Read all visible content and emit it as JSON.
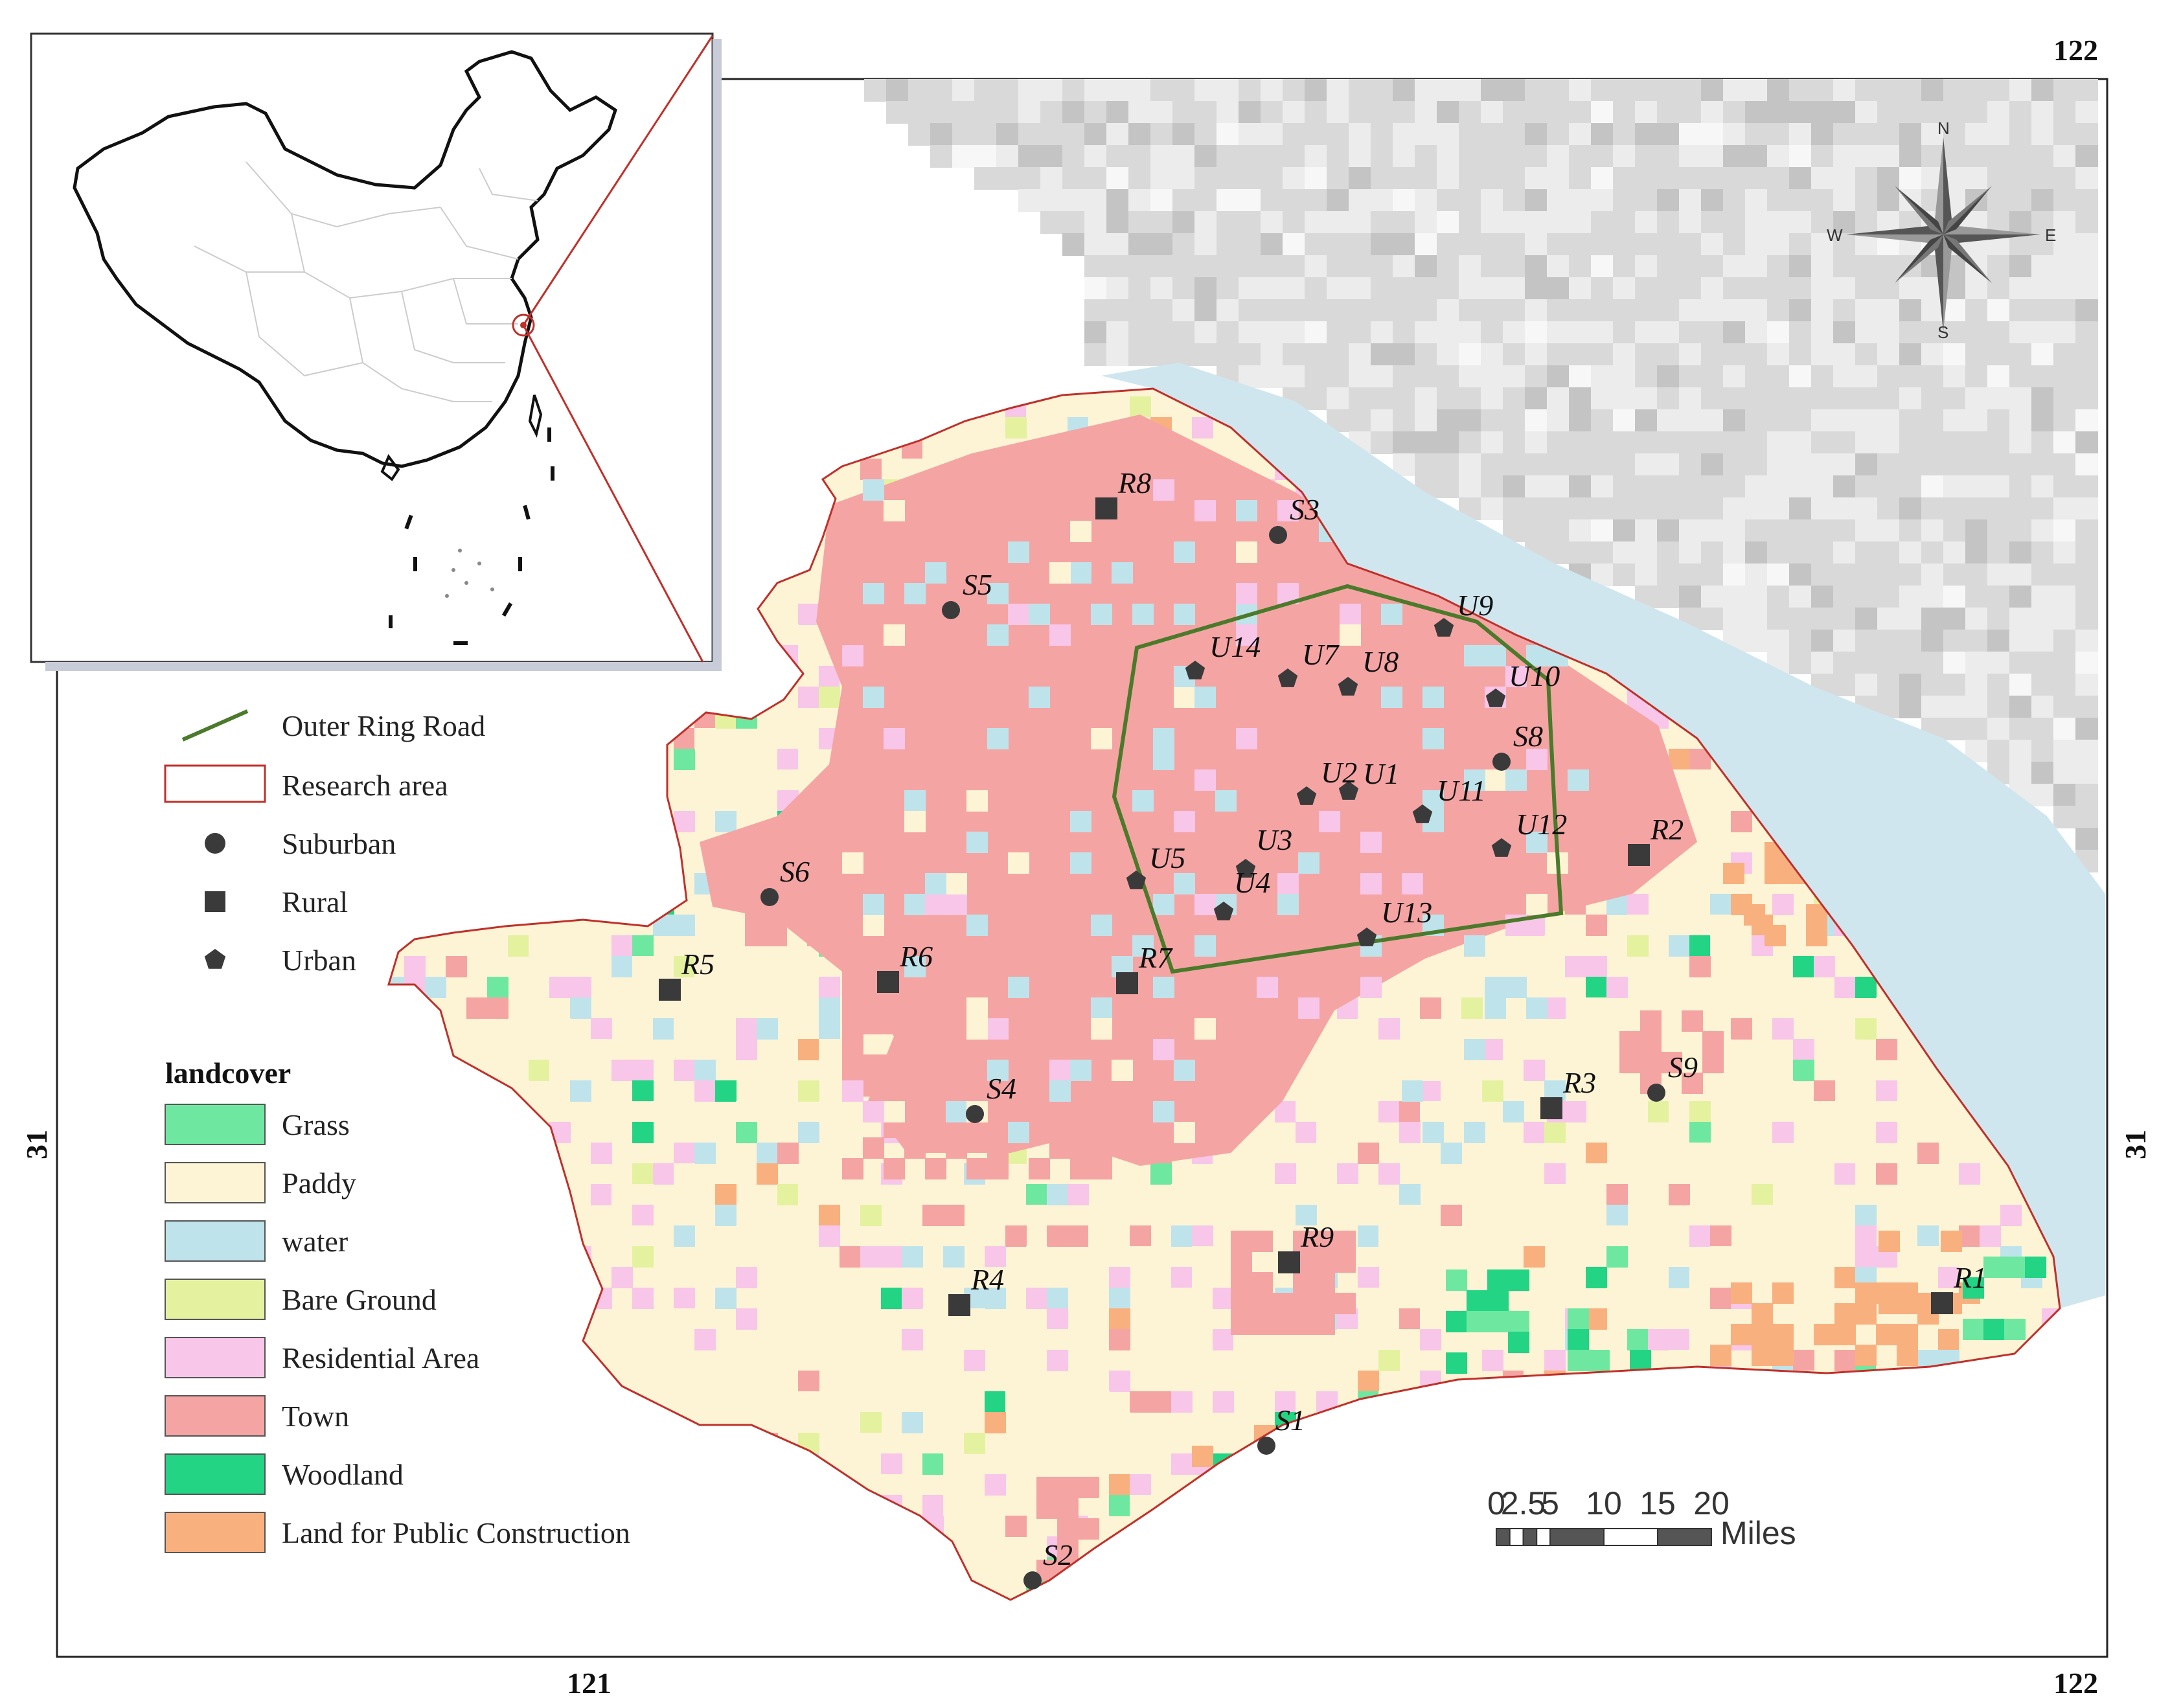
{
  "colors": {
    "grass": "#6ee8a0",
    "paddy": "#fdf4d6",
    "water": "#bfe3ea",
    "bare_ground": "#e4f2a0",
    "residential": "#f8c6e8",
    "town": "#f5a4a4",
    "woodland": "#22d484",
    "public_construction": "#f9b07f",
    "outer_ring_road": "#4a7a2a",
    "research_area": "#c0302a",
    "marker": "#3a3a3a",
    "sea": "#d9d9d9",
    "sea_light": "#ececec",
    "coast": "#cfe6ee"
  },
  "axes": {
    "top_right": "122",
    "bottom_left": "121",
    "bottom_right": "122",
    "left": "31",
    "right": "31"
  },
  "compass": {
    "n": "N",
    "s": "S",
    "e": "E",
    "w": "W"
  },
  "legend": {
    "symbols": [
      {
        "label": "Outer Ring Road",
        "icon": "line"
      },
      {
        "label": "Research area",
        "icon": "rect-outline"
      },
      {
        "label": "Suburban",
        "icon": "circle"
      },
      {
        "label": "Rural",
        "icon": "square"
      },
      {
        "label": "Urban",
        "icon": "pentagon"
      }
    ],
    "landcover_title": "landcover",
    "landcover": [
      {
        "label": "Grass",
        "color": "#6ee8a0"
      },
      {
        "label": "Paddy",
        "color": "#fdf4d6"
      },
      {
        "label": "water",
        "color": "#bfe3ea"
      },
      {
        "label": "Bare Ground",
        "color": "#e4f2a0"
      },
      {
        "label": "Residential Area",
        "color": "#f8c6e8"
      },
      {
        "label": "Town",
        "color": "#f5a4a4"
      },
      {
        "label": "Woodland",
        "color": "#22d484"
      },
      {
        "label": "Land for Public Construction",
        "color": "#f9b07f"
      }
    ]
  },
  "scale_bar": {
    "ticks": [
      "0",
      "2.5",
      "5",
      "10",
      "15",
      "20"
    ],
    "unit": "Miles"
  },
  "sites": {
    "suburban": [
      "S1",
      "S2",
      "S3",
      "S4",
      "S5",
      "S6",
      "S8",
      "S9"
    ],
    "rural": [
      "R1",
      "R2",
      "R3",
      "R4",
      "R5",
      "R6",
      "R7",
      "R8",
      "R9"
    ],
    "urban": [
      "U1",
      "U2",
      "U3",
      "U4",
      "U5",
      "U7",
      "U8",
      "U9",
      "U10",
      "U11",
      "U12",
      "U13",
      "U14"
    ]
  }
}
